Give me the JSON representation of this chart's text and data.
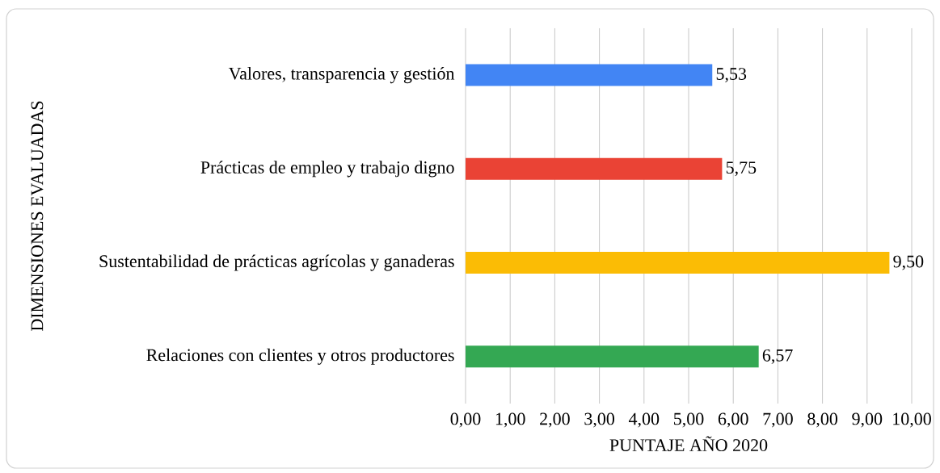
{
  "chart_data": {
    "type": "bar",
    "orientation": "horizontal",
    "xlabel": "PUNTAJE AÑO 2020",
    "ylabel": "DIMENSIONES EVALUADAS",
    "categories": [
      "Valores, transparencia y gestión",
      "Prácticas de empleo y trabajo digno",
      "Sustentabilidad de prácticas agrícolas y ganaderas",
      "Relaciones con clientes y otros productores"
    ],
    "values": [
      5.53,
      5.75,
      9.5,
      6.57
    ],
    "value_labels": [
      "5,53",
      "5,75",
      "9,50",
      "6,57"
    ],
    "colors": [
      "#4285f4",
      "#ea4335",
      "#fbbc05",
      "#34a853"
    ],
    "xlim": [
      0,
      10
    ],
    "xticks": [
      {
        "value": 0,
        "label": "0,00"
      },
      {
        "value": 1,
        "label": "1,00"
      },
      {
        "value": 2,
        "label": "2,00"
      },
      {
        "value": 3,
        "label": "3,00"
      },
      {
        "value": 4,
        "label": "4,00"
      },
      {
        "value": 5,
        "label": "5,00"
      },
      {
        "value": 6,
        "label": "6,00"
      },
      {
        "value": 7,
        "label": "7,00"
      },
      {
        "value": 8,
        "label": "8,00"
      },
      {
        "value": 9,
        "label": "9,00"
      },
      {
        "value": 10,
        "label": "10,00"
      }
    ],
    "grid": "x"
  }
}
